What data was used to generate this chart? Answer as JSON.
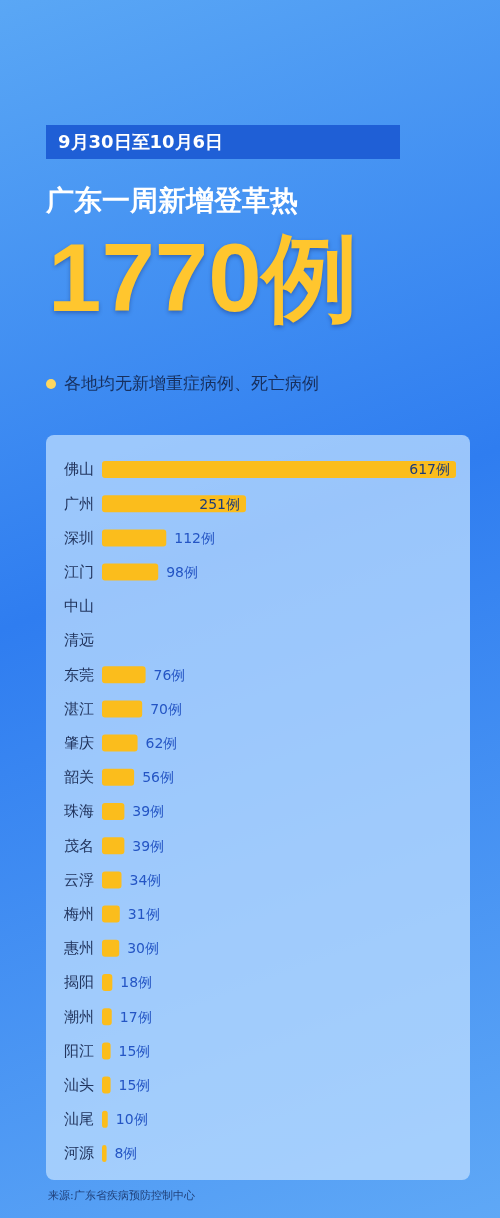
{
  "chart_data": {
    "type": "bar",
    "orientation": "horizontal",
    "title": "广东一周新增登革热",
    "subtitle": "9月30日至10月6日",
    "annotations": [
      "1770例",
      "各地均无新增重症病例、死亡病例",
      "来源:广东省疾病预防控制中心"
    ],
    "categories": [
      "佛山",
      "广州",
      "深圳",
      "江门",
      "中山",
      "清远",
      "东莞",
      "湛江",
      "肇庆",
      "韶关",
      "珠海",
      "茂名",
      "云浮",
      "梅州",
      "惠州",
      "揭阳",
      "潮州",
      "阳江",
      "汕头",
      "汕尾",
      "河源"
    ],
    "values": [
      617,
      251,
      112,
      98,
      null,
      null,
      76,
      70,
      62,
      56,
      39,
      39,
      34,
      31,
      30,
      18,
      17,
      15,
      15,
      10,
      8
    ],
    "value_labels": [
      "617例",
      "251例",
      "112例",
      "98例",
      null,
      null,
      "76例",
      "70例",
      "62例",
      "56例",
      "39例",
      "39例",
      "34例",
      "31例",
      "30例",
      "18例",
      "17例",
      "15例",
      "15例",
      "10例",
      "8例"
    ],
    "color": "#fbbd1c"
  }
}
